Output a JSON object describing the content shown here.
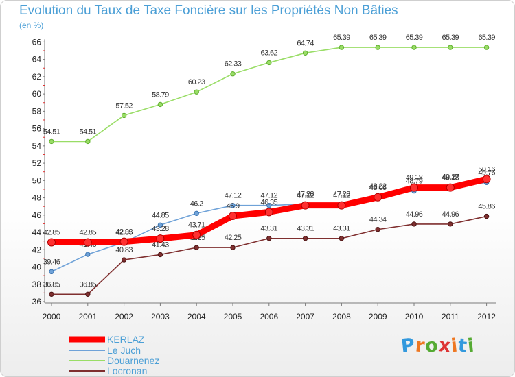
{
  "page": {
    "title": "Evolution du Taux de Taxe Foncière sur les Propriétés Non Bâties",
    "unit": "(en %)",
    "brand": "Proxiti"
  },
  "chart_data": {
    "type": "line",
    "title": "Evolution du Taux de Taxe Foncière sur les Propriétés Non Bâties",
    "ylabel": "(en %)",
    "xlabel": "",
    "x": [
      "2000",
      "2001",
      "2002",
      "2003",
      "2004",
      "2005",
      "2006",
      "2007",
      "2008",
      "2009",
      "2010",
      "2011",
      "2012"
    ],
    "ylim": [
      36,
      66
    ],
    "yticks": [
      36,
      38,
      40,
      42,
      44,
      46,
      48,
      50,
      52,
      54,
      56,
      58,
      60,
      62,
      64,
      66
    ],
    "grid": false,
    "legend_position": "bottom-left",
    "series": [
      {
        "name": "KERLAZ",
        "color": "#ff0000",
        "values": [
          42.85,
          42.85,
          42.92,
          43.28,
          43.71,
          45.9,
          46.35,
          47.12,
          47.12,
          48.06,
          49.18,
          49.18,
          50.16
        ]
      },
      {
        "name": "Le Juch",
        "color": "#6fa2d8",
        "values": [
          39.46,
          41.46,
          42.85,
          44.85,
          46.2,
          47.12,
          47.12,
          47.28,
          47.28,
          48.22,
          48.79,
          49.27,
          49.76
        ]
      },
      {
        "name": "Douarnenez",
        "color": "#99dd66",
        "values": [
          54.51,
          54.51,
          57.52,
          58.79,
          60.23,
          62.33,
          63.62,
          64.74,
          65.39,
          65.39,
          65.39,
          65.39,
          65.39
        ]
      },
      {
        "name": "Locronan",
        "color": "#7f2f2f",
        "values": [
          36.85,
          36.85,
          40.83,
          41.43,
          42.25,
          42.25,
          43.31,
          43.31,
          43.31,
          44.34,
          44.96,
          44.96,
          45.86
        ]
      }
    ]
  }
}
